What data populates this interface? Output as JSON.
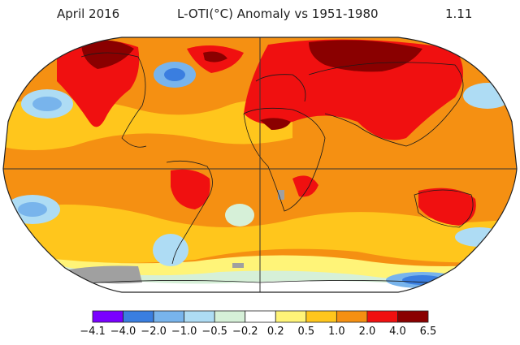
{
  "header": {
    "left": "April 2016",
    "center": "L-OTI(°C) Anomaly vs 1951-1980",
    "right": "1.11"
  },
  "map": {
    "projection": "robinson",
    "ocean_land_base_color": "#f0a020",
    "missing_data_color": "#a0a0a0",
    "gridlines": [
      "equator",
      "prime-meridian"
    ]
  },
  "legend": {
    "bins": [
      {
        "from": "-4.1",
        "to": "-4.0",
        "color": "#7a00ff"
      },
      {
        "from": "-4.0",
        "to": "-2.0",
        "color": "#3a7ee0"
      },
      {
        "from": "-2.0",
        "to": "-1.0",
        "color": "#78b4ec"
      },
      {
        "from": "-1.0",
        "to": "-0.5",
        "color": "#aedcf4"
      },
      {
        "from": "-0.5",
        "to": "-0.2",
        "color": "#d6f0d8"
      },
      {
        "from": "-0.2",
        "to": "0.2",
        "color": "#ffffff"
      },
      {
        "from": "0.2",
        "to": "0.5",
        "color": "#fff478"
      },
      {
        "from": "0.5",
        "to": "1.0",
        "color": "#ffc61c"
      },
      {
        "from": "1.0",
        "to": "2.0",
        "color": "#f59012"
      },
      {
        "from": "2.0",
        "to": "4.0",
        "color": "#f01010"
      },
      {
        "from": "4.0",
        "to": "6.5",
        "color": "#8a0000"
      }
    ],
    "tick_labels": [
      "−4.1",
      "−4.0",
      "−2.0",
      "−1.0",
      "−0.5",
      "−0.2",
      "0.2",
      "0.5",
      "1.0",
      "2.0",
      "4.0",
      "6.5"
    ]
  }
}
